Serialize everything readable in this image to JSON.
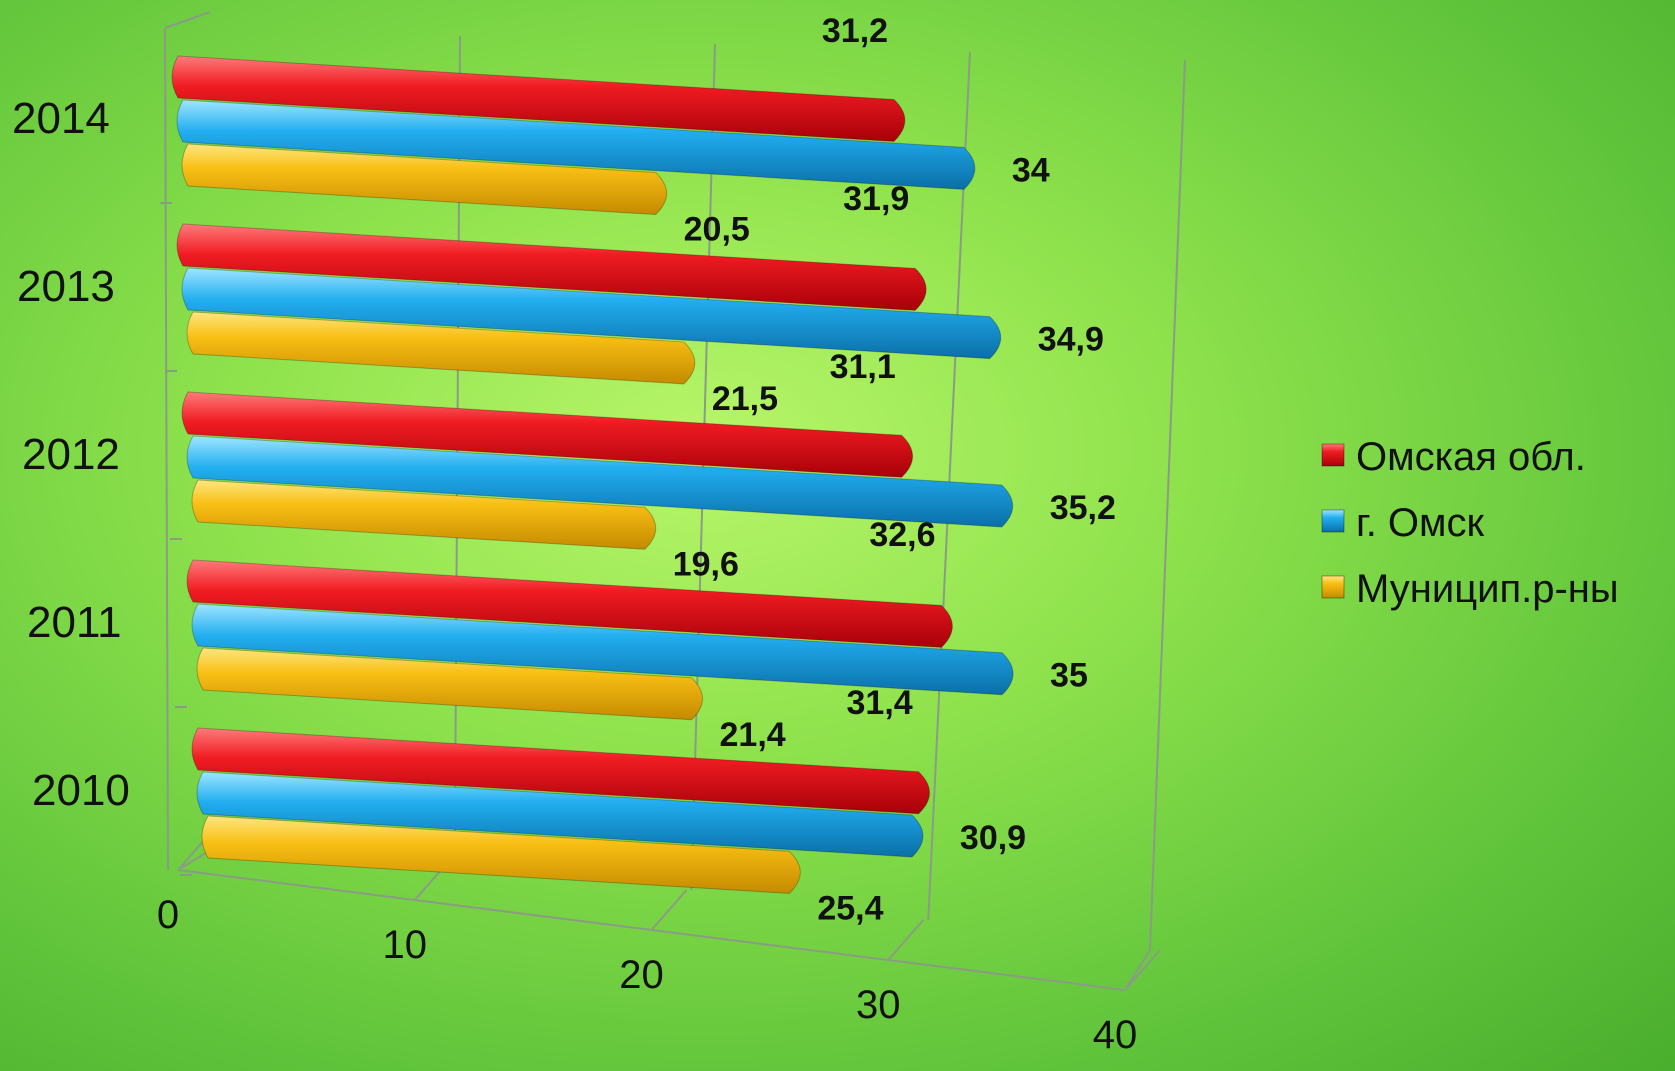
{
  "chart_data": {
    "type": "bar",
    "orientation": "horizontal",
    "three_d": true,
    "categories": [
      "2010",
      "2011",
      "2012",
      "2013",
      "2014"
    ],
    "series": [
      {
        "name": "Омская обл.",
        "color": "#e8101a",
        "values": [
          31.4,
          32.6,
          31.1,
          31.9,
          31.2
        ],
        "labels": [
          "31,4",
          "32,6",
          "31,1",
          "31,9",
          "31,2"
        ]
      },
      {
        "name": "г. Омск",
        "color": "#1aa6e6",
        "values": [
          30.9,
          35,
          35.2,
          34.9,
          34
        ],
        "labels": [
          "30,9",
          "35",
          "35,2",
          "34,9",
          "34"
        ]
      },
      {
        "name": "Муницип.р-ны",
        "color": "#f4b811",
        "values": [
          25.4,
          21.4,
          19.6,
          21.5,
          20.5
        ],
        "labels": [
          "25,4",
          "21,4",
          "19,6",
          "21,5",
          "20,5"
        ]
      }
    ],
    "xlim": [
      0,
      40
    ],
    "xticks": [
      "0",
      "10",
      "20",
      "30",
      "40"
    ],
    "grid": true,
    "legend_position": "right"
  }
}
